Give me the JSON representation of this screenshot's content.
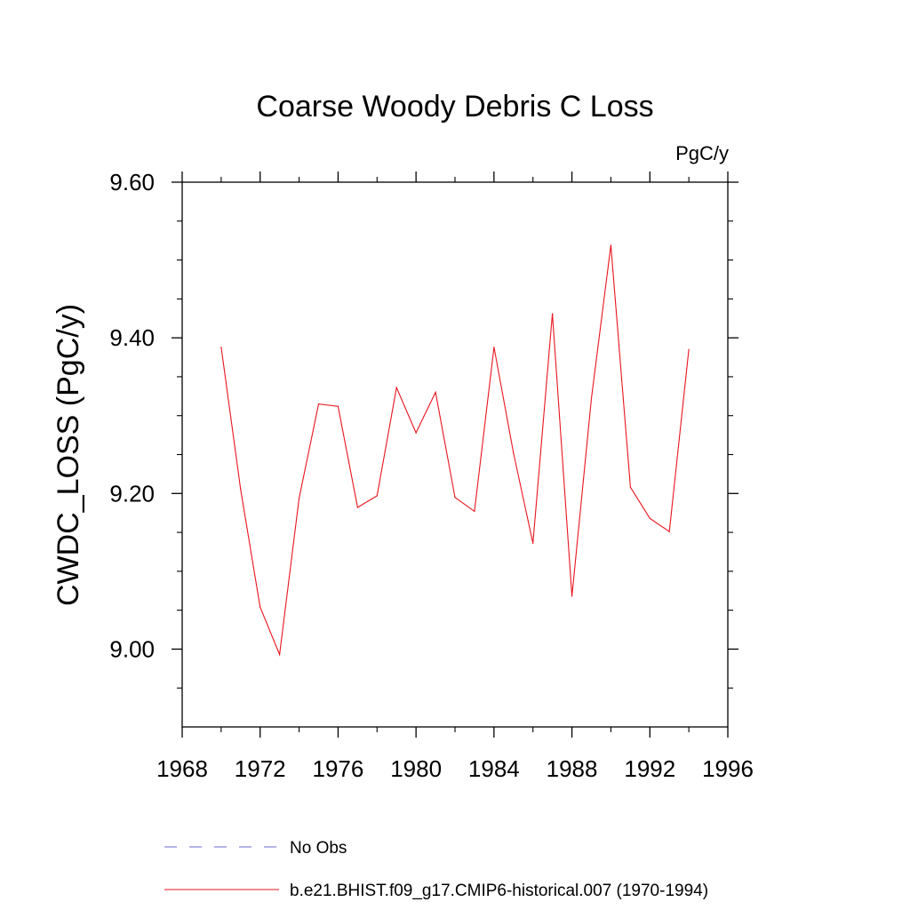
{
  "chart_data": {
    "type": "line",
    "title": "Coarse Woody Debris C Loss",
    "units_label": "PgC/y",
    "xlabel": "",
    "ylabel": "CWDC_LOSS  (PgC/y)",
    "xlim": [
      1968,
      1996
    ],
    "ylim": [
      8.9,
      9.6
    ],
    "x_ticks": [
      1968,
      1972,
      1976,
      1980,
      1984,
      1988,
      1992,
      1996
    ],
    "x_minor_ticks": [
      1970,
      1974,
      1978,
      1982,
      1986,
      1990,
      1994
    ],
    "y_ticks": [
      9.0,
      9.2,
      9.4,
      9.6
    ],
    "y_tick_labels": [
      "9.00",
      "9.20",
      "9.40",
      "9.60"
    ],
    "y_minor_ticks": [
      8.95,
      9.05,
      9.1,
      9.15,
      9.25,
      9.3,
      9.35,
      9.45,
      9.5,
      9.55
    ],
    "grid": false,
    "legend_position": "bottom",
    "series": [
      {
        "name": "No Obs",
        "color": "#6a6acd",
        "style": "dashed",
        "x": [],
        "values": []
      },
      {
        "name": "b.e21.BHIST.f09_g17.CMIP6-historical.007 (1970-1994)",
        "color": "#e8141e",
        "style": "solid",
        "x": [
          1970,
          1971,
          1972,
          1973,
          1974,
          1975,
          1976,
          1977,
          1978,
          1979,
          1980,
          1981,
          1982,
          1983,
          1984,
          1985,
          1986,
          1987,
          1988,
          1989,
          1990,
          1991,
          1992,
          1993,
          1994
        ],
        "values": [
          9.388,
          9.205,
          9.054,
          8.993,
          9.194,
          9.315,
          9.312,
          9.182,
          9.197,
          9.336,
          9.278,
          9.33,
          9.195,
          9.177,
          9.388,
          9.252,
          9.136,
          9.431,
          9.068,
          9.322,
          9.519,
          9.208,
          9.168,
          9.151,
          9.385
        ]
      }
    ]
  }
}
